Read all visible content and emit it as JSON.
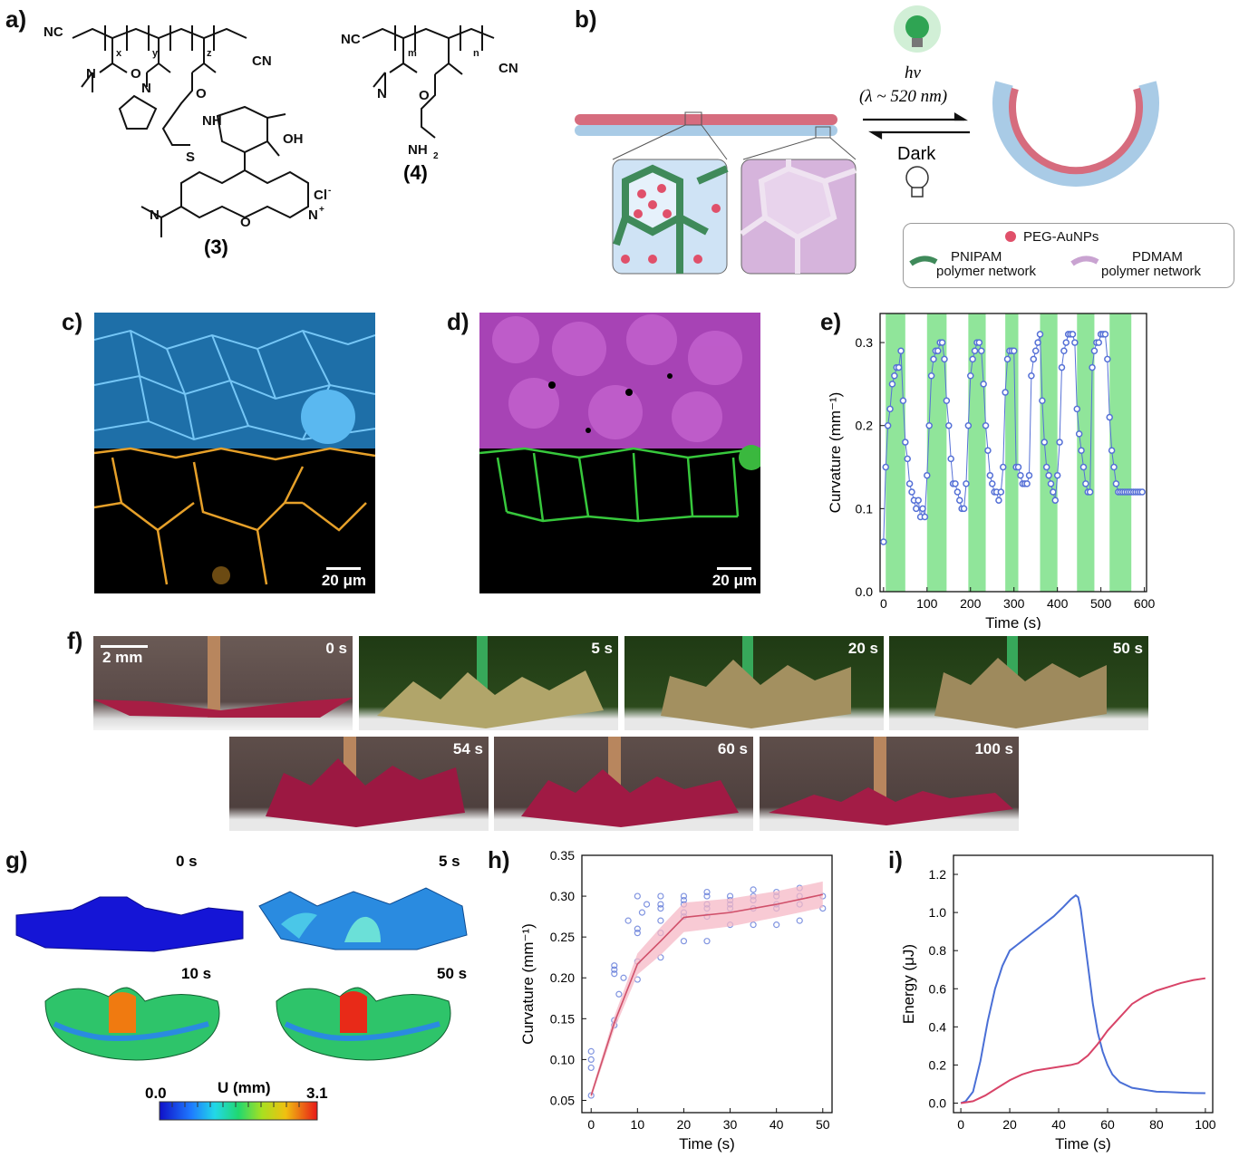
{
  "panels": {
    "a": "a)",
    "b": "b)",
    "c": "c)",
    "d": "d)",
    "e": "e)",
    "f": "f)",
    "g": "g)",
    "h": "h)",
    "i": "i)"
  },
  "panel_a": {
    "compound3": "(3)",
    "compound4": "(4)",
    "labels": {
      "nc": "NC",
      "cn": "CN",
      "x": "x",
      "y": "y",
      "z": "z",
      "m": "m",
      "n": "n",
      "nh": "NH",
      "s": "S",
      "o": "O",
      "n_atom": "N",
      "cooh": "OH",
      "cl": "Cl",
      "cl_sup": "-",
      "nplus": "N",
      "plus": "+",
      "nh2": "NH",
      "nh2_sub": "2"
    }
  },
  "panel_b": {
    "hv": "hν",
    "lambda": "(λ ~ 520 nm)",
    "dark": "Dark",
    "legend": {
      "aunp": "PEG-AuNPs",
      "pnipam_1": "PNIPAM",
      "pnipam_2": "polymer network",
      "pdmam_1": "PDMAM",
      "pdmam_2": "polymer network"
    },
    "colors": {
      "aunp": "#e0506a",
      "pnipam": "#3f8a5a",
      "pdmam": "#c9a3d1",
      "bead_blue": "#a9cbe6",
      "bead_red": "#d66c7e"
    }
  },
  "panel_c": {
    "scale": "20 μm"
  },
  "panel_d": {
    "scale": "20 μm"
  },
  "panel_f": {
    "scale": "2 mm",
    "times": [
      "0 s",
      "5 s",
      "20 s",
      "50 s",
      "54 s",
      "60 s",
      "100 s"
    ]
  },
  "panel_g": {
    "times": [
      "0 s",
      "5 s",
      "10 s",
      "50 s"
    ],
    "colorbar_title": "U (mm)",
    "colorbar_min": "0.0",
    "colorbar_max": "3.1"
  },
  "chart_data": [
    {
      "id": "e",
      "type": "scatter",
      "xlabel": "Time (s)",
      "ylabel": "Curvature (mm⁻¹)",
      "xlim": [
        -8,
        605
      ],
      "ylim": [
        0,
        0.335
      ],
      "xticks": [
        0,
        100,
        200,
        300,
        400,
        500,
        600
      ],
      "yticks": [
        0.0,
        0.1,
        0.2,
        0.3
      ],
      "light_on_intervals": [
        [
          5,
          50
        ],
        [
          100,
          145
        ],
        [
          195,
          235
        ],
        [
          280,
          310
        ],
        [
          360,
          400
        ],
        [
          445,
          485
        ],
        [
          520,
          570
        ]
      ],
      "light_color": "#90e59a",
      "series_color": "#5570d6",
      "x": [
        0,
        5,
        10,
        15,
        20,
        25,
        30,
        35,
        40,
        45,
        50,
        55,
        60,
        65,
        70,
        75,
        80,
        85,
        90,
        95,
        100,
        105,
        110,
        115,
        120,
        125,
        130,
        135,
        140,
        145,
        150,
        155,
        160,
        165,
        170,
        175,
        180,
        185,
        190,
        195,
        200,
        205,
        210,
        215,
        220,
        225,
        230,
        235,
        240,
        245,
        250,
        255,
        260,
        265,
        270,
        275,
        280,
        285,
        290,
        295,
        300,
        305,
        310,
        315,
        320,
        325,
        330,
        335,
        340,
        345,
        350,
        355,
        360,
        365,
        370,
        375,
        380,
        385,
        390,
        395,
        400,
        405,
        410,
        415,
        420,
        425,
        430,
        435,
        440,
        445,
        450,
        455,
        460,
        465,
        470,
        475,
        480,
        485,
        490,
        495,
        500,
        505,
        510,
        515,
        520,
        525,
        530,
        535,
        540,
        545,
        550,
        555,
        560,
        565,
        570,
        575,
        580,
        585,
        590,
        595
      ],
      "y": [
        0.06,
        0.15,
        0.2,
        0.22,
        0.25,
        0.26,
        0.27,
        0.27,
        0.29,
        0.23,
        0.18,
        0.16,
        0.13,
        0.12,
        0.11,
        0.1,
        0.11,
        0.09,
        0.1,
        0.09,
        0.14,
        0.2,
        0.26,
        0.28,
        0.29,
        0.29,
        0.3,
        0.3,
        0.28,
        0.23,
        0.2,
        0.16,
        0.13,
        0.13,
        0.12,
        0.11,
        0.1,
        0.1,
        0.13,
        0.2,
        0.26,
        0.28,
        0.29,
        0.3,
        0.3,
        0.29,
        0.25,
        0.2,
        0.17,
        0.14,
        0.13,
        0.12,
        0.12,
        0.11,
        0.12,
        0.15,
        0.24,
        0.28,
        0.29,
        0.29,
        0.29,
        0.15,
        0.15,
        0.14,
        0.13,
        0.13,
        0.13,
        0.14,
        0.26,
        0.28,
        0.29,
        0.3,
        0.31,
        0.23,
        0.18,
        0.15,
        0.14,
        0.13,
        0.12,
        0.11,
        0.14,
        0.18,
        0.27,
        0.29,
        0.3,
        0.31,
        0.31,
        0.31,
        0.3,
        0.22,
        0.19,
        0.17,
        0.15,
        0.13,
        0.12,
        0.12,
        0.27,
        0.29,
        0.3,
        0.3,
        0.31,
        0.31,
        0.31,
        0.28,
        0.21,
        0.17,
        0.15,
        0.13,
        0.12,
        0.12,
        0.12,
        0.12,
        0.12,
        0.12,
        0.12,
        0.12,
        0.12,
        0.12,
        0.12,
        0.12
      ]
    },
    {
      "id": "h",
      "type": "line",
      "xlabel": "Time (s)",
      "ylabel": "Curvature (mm⁻¹)",
      "xlim": [
        -2,
        52
      ],
      "ylim": [
        0.035,
        0.35
      ],
      "xticks": [
        0,
        10,
        20,
        30,
        40,
        50
      ],
      "yticks": [
        0.05,
        0.1,
        0.15,
        0.2,
        0.25,
        0.3,
        0.35
      ],
      "mean": {
        "x": [
          0,
          5,
          10,
          15,
          20,
          30,
          40,
          50
        ],
        "y": [
          0.056,
          0.145,
          0.217,
          0.245,
          0.274,
          0.28,
          0.29,
          0.302
        ]
      },
      "band_upper": [
        0.06,
        0.153,
        0.23,
        0.262,
        0.292,
        0.297,
        0.306,
        0.318
      ],
      "band_lower": [
        0.052,
        0.137,
        0.204,
        0.228,
        0.256,
        0.263,
        0.274,
        0.286
      ],
      "scatter": {
        "x": [
          0,
          0,
          0,
          0,
          5,
          5,
          5,
          5,
          5,
          6,
          7,
          8,
          10,
          10,
          10,
          10,
          10,
          11,
          12,
          15,
          15,
          15,
          15,
          15,
          15,
          20,
          20,
          20,
          20,
          20,
          20,
          25,
          25,
          25,
          25,
          25,
          25,
          30,
          30,
          30,
          30,
          30,
          35,
          35,
          35,
          35,
          35,
          40,
          40,
          40,
          40,
          40,
          45,
          45,
          45,
          45,
          50,
          50
        ],
        "y": [
          0.056,
          0.09,
          0.1,
          0.11,
          0.142,
          0.148,
          0.205,
          0.21,
          0.215,
          0.18,
          0.2,
          0.27,
          0.198,
          0.22,
          0.255,
          0.26,
          0.3,
          0.28,
          0.29,
          0.225,
          0.255,
          0.27,
          0.285,
          0.29,
          0.3,
          0.245,
          0.275,
          0.28,
          0.29,
          0.295,
          0.3,
          0.245,
          0.275,
          0.285,
          0.29,
          0.3,
          0.305,
          0.265,
          0.285,
          0.29,
          0.295,
          0.3,
          0.265,
          0.285,
          0.295,
          0.3,
          0.308,
          0.265,
          0.285,
          0.29,
          0.3,
          0.305,
          0.27,
          0.29,
          0.3,
          0.31,
          0.285,
          0.3
        ]
      },
      "line_color": "#d0506a",
      "band_color": "#f5b8c5",
      "point_color": "#5570d6"
    },
    {
      "id": "i",
      "type": "line",
      "xlabel": "Time (s)",
      "ylabel": "Energy (μJ)",
      "xlim": [
        -3,
        103
      ],
      "ylim": [
        -0.05,
        1.3
      ],
      "xticks": [
        0,
        20,
        40,
        60,
        80,
        100
      ],
      "yticks": [
        0.0,
        0.2,
        0.4,
        0.6,
        0.8,
        1.0,
        1.2
      ],
      "series": [
        {
          "color": "#4a6fd6",
          "x": [
            0,
            2,
            5,
            8,
            11,
            14,
            17,
            20,
            23,
            26,
            30,
            34,
            38,
            42,
            45,
            47,
            48,
            49,
            50,
            52,
            54,
            56,
            58,
            60,
            62,
            65,
            70,
            75,
            80,
            85,
            90,
            95,
            100
          ],
          "y": [
            0.0,
            0.01,
            0.06,
            0.22,
            0.43,
            0.6,
            0.72,
            0.8,
            0.83,
            0.86,
            0.9,
            0.94,
            0.98,
            1.03,
            1.07,
            1.09,
            1.08,
            1.02,
            0.92,
            0.72,
            0.52,
            0.37,
            0.27,
            0.2,
            0.15,
            0.11,
            0.08,
            0.07,
            0.06,
            0.058,
            0.055,
            0.053,
            0.052
          ]
        },
        {
          "color": "#d84468",
          "x": [
            0,
            5,
            10,
            15,
            20,
            25,
            30,
            35,
            40,
            45,
            48,
            52,
            56,
            60,
            65,
            70,
            75,
            80,
            85,
            90,
            95,
            100
          ],
          "y": [
            0.0,
            0.01,
            0.04,
            0.08,
            0.12,
            0.15,
            0.17,
            0.18,
            0.19,
            0.2,
            0.21,
            0.25,
            0.31,
            0.38,
            0.45,
            0.52,
            0.56,
            0.59,
            0.61,
            0.63,
            0.645,
            0.655
          ]
        }
      ]
    }
  ]
}
